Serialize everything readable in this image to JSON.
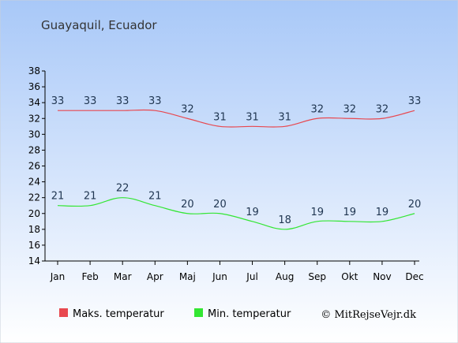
{
  "chart_data": {
    "type": "line",
    "title": "Guayaquil, Ecuador",
    "categories": [
      "Jan",
      "Feb",
      "Mar",
      "Apr",
      "Maj",
      "Jun",
      "Jul",
      "Aug",
      "Sep",
      "Okt",
      "Nov",
      "Dec"
    ],
    "series": [
      {
        "name": "Maks. temperatur",
        "color": "#e8484f",
        "values": [
          33,
          33,
          33,
          33,
          32,
          31,
          31,
          31,
          32,
          32,
          32,
          33
        ]
      },
      {
        "name": "Min. temperatur",
        "color": "#33e633",
        "values": [
          21,
          21,
          22,
          21,
          20,
          20,
          19,
          18,
          19,
          19,
          19,
          20
        ]
      }
    ],
    "ylim": [
      14,
      38
    ],
    "yticks": [
      14,
      16,
      18,
      20,
      22,
      24,
      26,
      28,
      30,
      32,
      34,
      36,
      38
    ],
    "grid": false,
    "legend_position": "bottom-left"
  },
  "credit": "© MitRejseVejr.dk",
  "colors": {
    "background_top": "#a8c8f8",
    "background_bottom": "#ffffff"
  }
}
